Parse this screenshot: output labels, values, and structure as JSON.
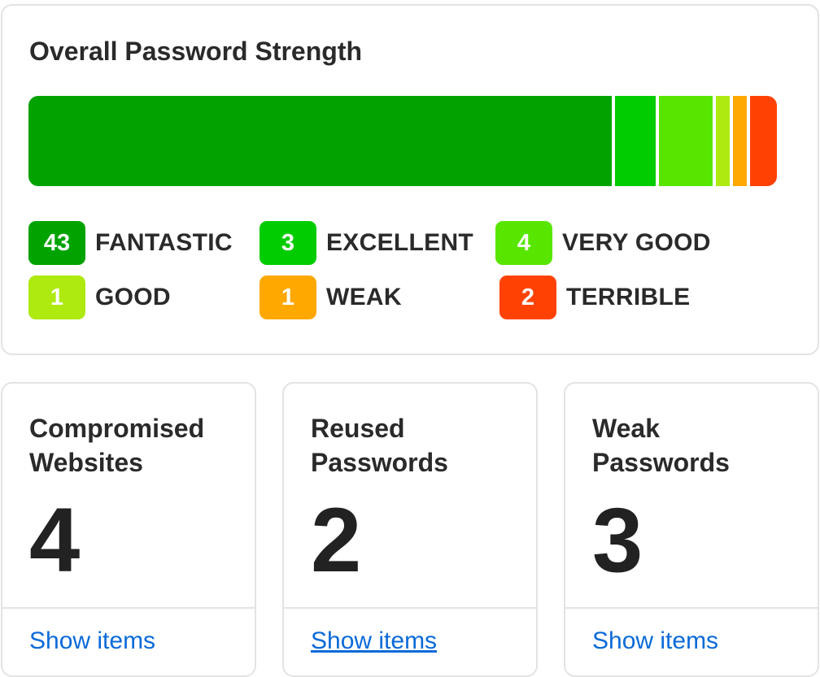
{
  "strength": {
    "title": "Overall Password Strength",
    "categories": [
      {
        "label": "FANTASTIC",
        "count": 43,
        "color": "#00a300"
      },
      {
        "label": "EXCELLENT",
        "count": 3,
        "color": "#00cc00"
      },
      {
        "label": "VERY GOOD",
        "count": 4,
        "color": "#58e600"
      },
      {
        "label": "GOOD",
        "count": 1,
        "color": "#aee910"
      },
      {
        "label": "WEAK",
        "count": 1,
        "color": "#ffa800"
      },
      {
        "label": "TERRIBLE",
        "count": 2,
        "color": "#ff4203"
      }
    ]
  },
  "stats": [
    {
      "title": "Compromised Websites",
      "value": "4",
      "link": "Show items"
    },
    {
      "title": "Reused Passwords",
      "value": "2",
      "link": "Show items"
    },
    {
      "title": "Weak Passwords",
      "value": "3",
      "link": "Show items"
    }
  ],
  "link_color": "#0a6ad8"
}
